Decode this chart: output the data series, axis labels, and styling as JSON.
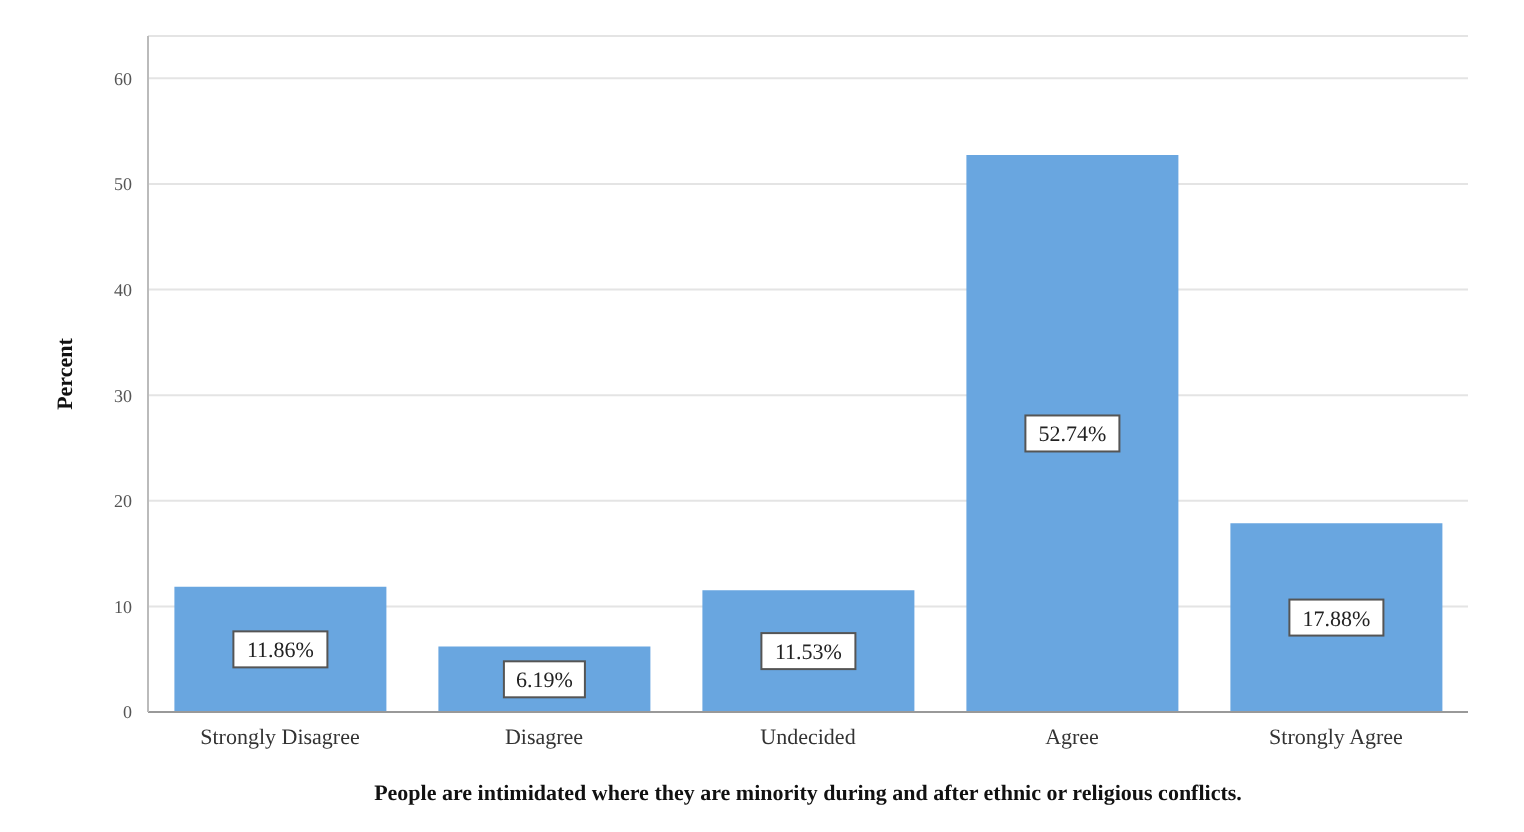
{
  "chart_data": {
    "type": "bar",
    "xlabel": "People are intimidated where they are minority during and after ethnic or religious conflicts.",
    "ylabel": "Percent",
    "categories": [
      "Strongly Disagree",
      "Disagree",
      "Undecided",
      "Agree",
      "Strongly Agree"
    ],
    "values": [
      11.86,
      6.19,
      11.53,
      52.74,
      17.88
    ],
    "value_labels": [
      "11.86%",
      "6.19%",
      "11.53%",
      "52.74%",
      "17.88%"
    ],
    "color": "#69a6e0",
    "ylim": [
      0,
      64
    ],
    "yticks": [
      0,
      10,
      20,
      30,
      40,
      50,
      60
    ],
    "grid": "y"
  }
}
